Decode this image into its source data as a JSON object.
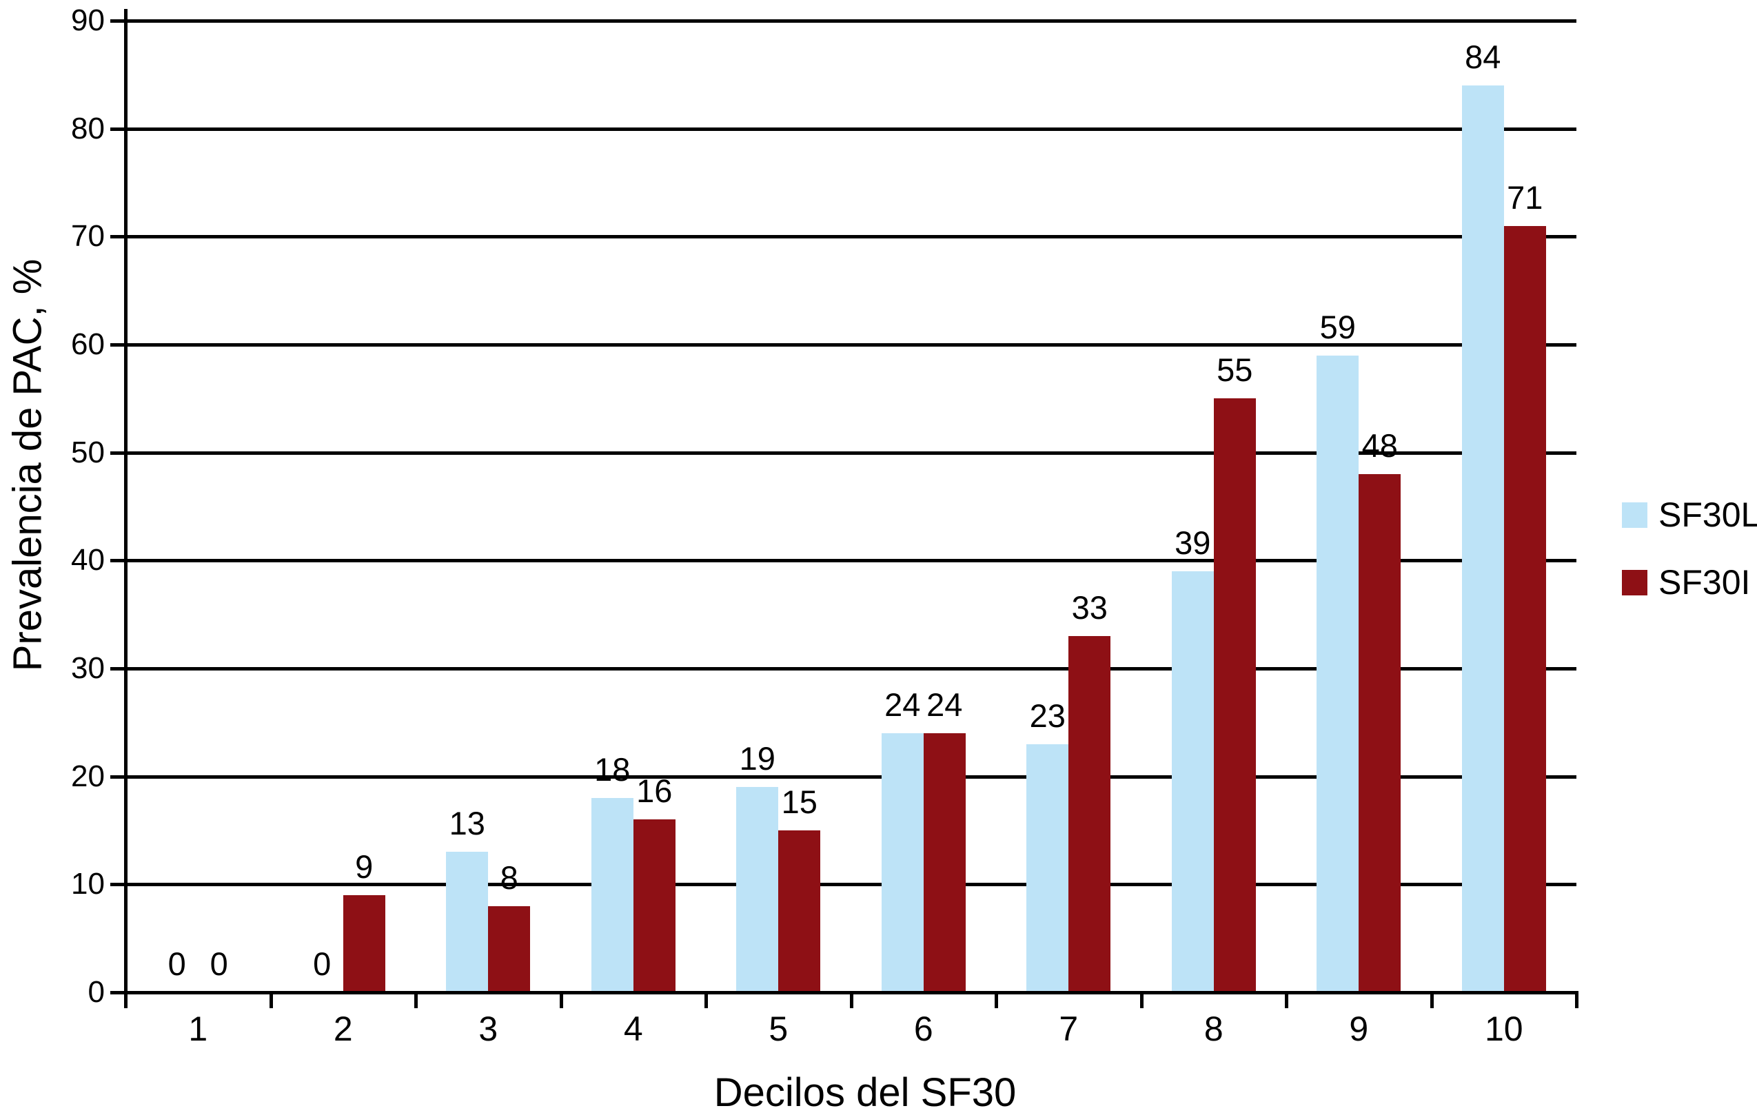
{
  "chart_data": {
    "type": "bar",
    "title": "",
    "categories": [
      "1",
      "2",
      "3",
      "4",
      "5",
      "6",
      "7",
      "8",
      "9",
      "10"
    ],
    "series": [
      {
        "name": "SF30L",
        "color": "#BDE3F7",
        "values": [
          0,
          0,
          13,
          18,
          19,
          24,
          23,
          39,
          59,
          84
        ]
      },
      {
        "name": "SF30I",
        "color": "#8E1015",
        "values": [
          0,
          9,
          8,
          16,
          15,
          24,
          33,
          55,
          48,
          71
        ]
      }
    ],
    "xlabel": "Decilos del SF30",
    "ylabel": "Prevalencia de PAC, %",
    "ylim": [
      0,
      90
    ],
    "ytick_step": 10,
    "ytick_labels": [
      "0",
      "10",
      "20",
      "30",
      "40",
      "50",
      "60",
      "70",
      "80",
      "90"
    ],
    "grid": true,
    "grid_color": "#000000",
    "axis_color": "#000000",
    "value_labels": true,
    "legend_position": "right",
    "background": "#ffffff"
  }
}
